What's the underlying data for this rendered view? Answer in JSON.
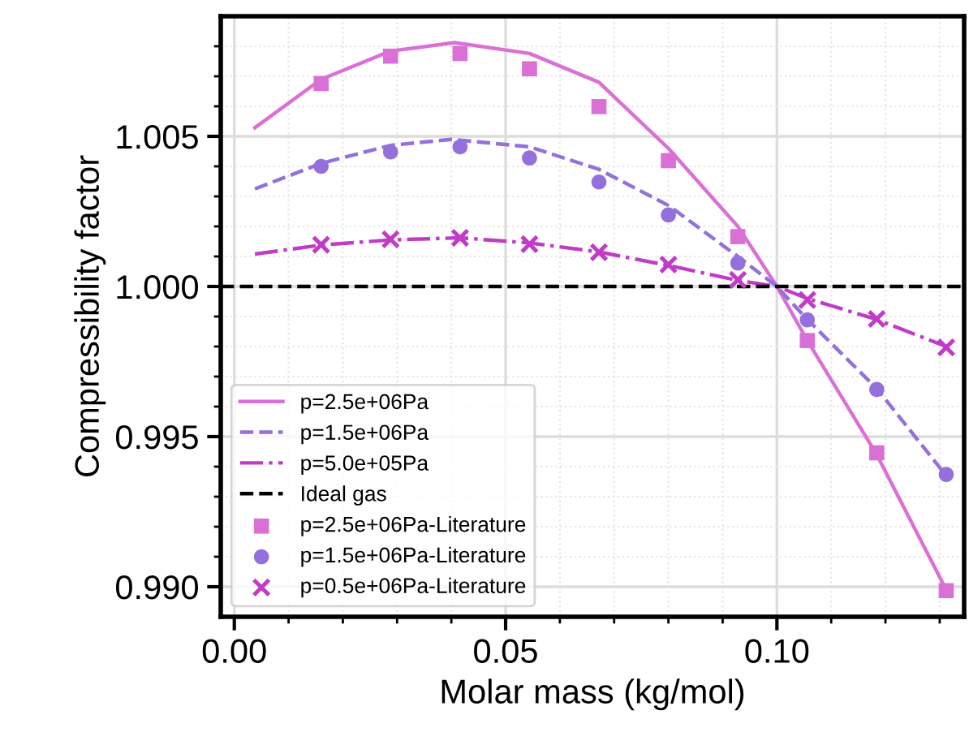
{
  "chart_data": {
    "type": "line",
    "xlabel": "Molar mass (kg/mol)",
    "ylabel": "Compressibility factor",
    "xlim": [
      -0.0025,
      0.1345
    ],
    "ylim": [
      0.989,
      1.009
    ],
    "xticks": [
      {
        "value": 0.0,
        "label": "0.00"
      },
      {
        "value": 0.05,
        "label": "0.05"
      },
      {
        "value": 0.1,
        "label": "0.10"
      },
      {
        "value": 0.01,
        "label": null
      },
      {
        "value": 0.02,
        "label": null
      },
      {
        "value": 0.03,
        "label": null
      },
      {
        "value": 0.04,
        "label": null
      },
      {
        "value": 0.06,
        "label": null
      },
      {
        "value": 0.07,
        "label": null
      },
      {
        "value": 0.08,
        "label": null
      },
      {
        "value": 0.09,
        "label": null
      },
      {
        "value": 0.11,
        "label": null
      },
      {
        "value": 0.12,
        "label": null
      },
      {
        "value": 0.13,
        "label": null
      }
    ],
    "yticks": [
      {
        "value": 0.99,
        "label": "0.990"
      },
      {
        "value": 0.995,
        "label": "0.995"
      },
      {
        "value": 1.0,
        "label": "1.000"
      },
      {
        "value": 1.005,
        "label": "1.005"
      },
      {
        "value": 0.991,
        "label": null
      },
      {
        "value": 0.992,
        "label": null
      },
      {
        "value": 0.993,
        "label": null
      },
      {
        "value": 0.994,
        "label": null
      },
      {
        "value": 0.996,
        "label": null
      },
      {
        "value": 0.997,
        "label": null
      },
      {
        "value": 0.998,
        "label": null
      },
      {
        "value": 0.999,
        "label": null
      },
      {
        "value": 1.001,
        "label": null
      },
      {
        "value": 1.002,
        "label": null
      },
      {
        "value": 1.003,
        "label": null
      },
      {
        "value": 1.004,
        "label": null
      },
      {
        "value": 1.006,
        "label": null
      },
      {
        "value": 1.007,
        "label": null
      },
      {
        "value": 1.008,
        "label": null
      }
    ],
    "grid": true,
    "legend": "bottom left",
    "ref_lines": [
      {
        "axis": "y",
        "value": 1.0,
        "label": "Ideal gas",
        "color": "#000000",
        "line_style": "dashed"
      }
    ],
    "series": [
      {
        "name": "p=2.5e+06Pa",
        "color": "#da70d6",
        "line_style": "solid",
        "marker": "none",
        "x": [
          0.0038,
          0.016,
          0.0288,
          0.0406,
          0.0544,
          0.0672,
          0.08,
          0.0928,
          0.1,
          0.1056,
          0.1184,
          0.1312
        ],
        "values": [
          1.00529,
          1.0069,
          1.00784,
          1.00812,
          1.00776,
          1.0068,
          1.0046,
          1.002,
          1.0,
          0.9982,
          0.9944,
          0.9899
        ]
      },
      {
        "name": "p=1.5e+06Pa",
        "color": "#9370db",
        "line_style": "dashed",
        "marker": "none",
        "x": [
          0.0038,
          0.016,
          0.0288,
          0.04,
          0.0544,
          0.0672,
          0.08,
          0.0928,
          0.1,
          0.1056,
          0.1184,
          0.1312
        ],
        "values": [
          1.00325,
          1.0041,
          1.0047,
          1.0049,
          1.00465,
          1.0039,
          1.0027,
          1.001,
          1.0,
          0.9989,
          0.9966,
          0.9937
        ]
      },
      {
        "name": "p=5.0e+05Pa",
        "color": "#c13cc6",
        "line_style": "dashdot",
        "marker": "none",
        "x": [
          0.0038,
          0.016,
          0.0288,
          0.0416,
          0.0544,
          0.0672,
          0.08,
          0.0928,
          0.1,
          0.1056,
          0.1184,
          0.1312
        ],
        "values": [
          1.00108,
          1.00138,
          1.00155,
          1.00162,
          1.00145,
          1.00115,
          1.0007,
          1.0002,
          1.0,
          0.9996,
          0.9989,
          0.998
        ]
      },
      {
        "name": "p=2.5e+06Pa-Literature",
        "type": "scatter",
        "color": "#da70d6",
        "marker": "square",
        "x": [
          0.016,
          0.0288,
          0.0416,
          0.0544,
          0.0672,
          0.08,
          0.0928,
          0.1056,
          0.1184,
          0.1312
        ],
        "values": [
          1.00676,
          1.00767,
          1.00776,
          1.00725,
          1.00599,
          1.00419,
          1.00166,
          0.9982,
          0.99446,
          0.98987
        ]
      },
      {
        "name": "p=1.5e+06Pa-Literature",
        "type": "scatter",
        "color": "#9370db",
        "marker": "circle",
        "x": [
          0.016,
          0.0288,
          0.0416,
          0.0544,
          0.0672,
          0.08,
          0.0928,
          0.1056,
          0.1184,
          0.1312
        ],
        "values": [
          1.004,
          1.00448,
          1.00465,
          1.00428,
          1.00348,
          1.00238,
          1.00078,
          0.99889,
          0.99657,
          0.99374
        ]
      },
      {
        "name": "p=0.5e+06Pa-Literature",
        "type": "scatter",
        "color": "#c13cc6",
        "marker": "cross",
        "x": [
          0.016,
          0.0288,
          0.0416,
          0.0544,
          0.0672,
          0.08,
          0.0928,
          0.1056,
          0.1184,
          0.1312
        ],
        "values": [
          1.00139,
          1.00157,
          1.00162,
          1.00141,
          1.00114,
          1.00073,
          1.00022,
          0.99955,
          0.99892,
          0.99797
        ]
      }
    ]
  }
}
